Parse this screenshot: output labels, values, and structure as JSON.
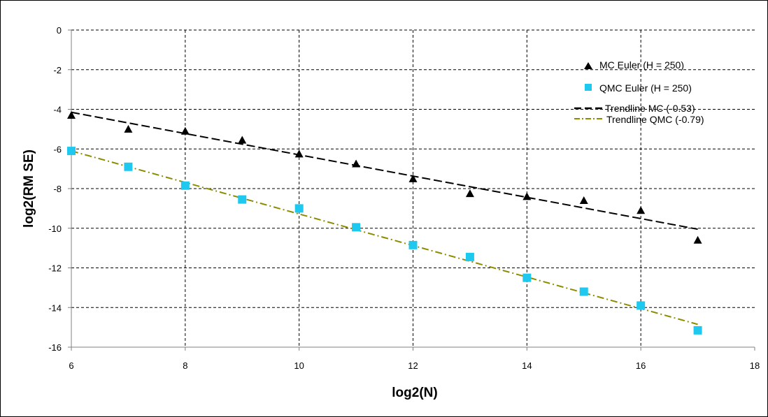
{
  "chart_data": {
    "type": "scatter",
    "xlabel": "log2(N)",
    "ylabel": "log2(RM SE)",
    "xlim": [
      6,
      18
    ],
    "ylim": [
      -16,
      0
    ],
    "xticks": [
      6,
      8,
      10,
      12,
      14,
      16,
      18
    ],
    "yticks": [
      0,
      -2,
      -4,
      -6,
      -8,
      -10,
      -12,
      -14,
      -16
    ],
    "grid": "dashed",
    "legend_position": "top-right",
    "series": [
      {
        "name": "MC Euler (H = 250)",
        "kind": "points",
        "marker": "triangle",
        "color": "#000000",
        "x": [
          6,
          7,
          8,
          9,
          10,
          11,
          12,
          13,
          14,
          15,
          16,
          17
        ],
        "y": [
          -4.3,
          -5.0,
          -5.1,
          -5.55,
          -6.25,
          -6.75,
          -7.5,
          -8.25,
          -8.4,
          -8.6,
          -9.1,
          -10.6
        ]
      },
      {
        "name": "QMC Euler (H = 250)",
        "kind": "points",
        "marker": "square",
        "color": "#1fc8ee",
        "x": [
          6,
          7,
          8,
          9,
          10,
          11,
          12,
          13,
          14,
          15,
          16,
          17
        ],
        "y": [
          -6.1,
          -6.9,
          -7.85,
          -8.55,
          -9.0,
          -9.95,
          -10.85,
          -11.45,
          -12.5,
          -13.2,
          -13.9,
          -15.15
        ]
      },
      {
        "name": "Trendline MC (-0.53)",
        "kind": "line",
        "dash": "dashed",
        "color": "#000000",
        "x": [
          6,
          17
        ],
        "y": [
          -4.15,
          -10.05
        ]
      },
      {
        "name": "Trendline QMC (-0.79)",
        "kind": "line",
        "dash": "dashdot",
        "color": "#8c8c00",
        "x": [
          6,
          17
        ],
        "y": [
          -6.1,
          -14.85
        ]
      }
    ]
  }
}
